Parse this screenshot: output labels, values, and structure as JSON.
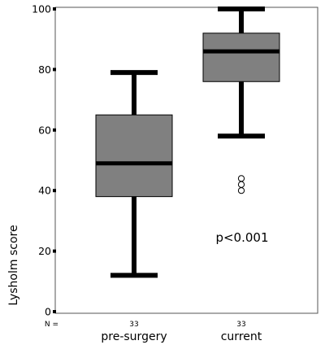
{
  "chart_data": {
    "type": "box",
    "ylabel": "Lysholm score",
    "xlabel": "",
    "ylim": [
      0,
      100
    ],
    "yticks": [
      0,
      20,
      40,
      60,
      80,
      100
    ],
    "categories": [
      "pre-surgery",
      "current"
    ],
    "n_label": "N =",
    "n_values": [
      "33",
      "33"
    ],
    "boxes": [
      {
        "category": "pre-surgery",
        "whisker_low": 12,
        "q1": 38,
        "median": 49,
        "q3": 65,
        "whisker_high": 79,
        "outliers": []
      },
      {
        "category": "current",
        "whisker_low": 58,
        "q1": 76,
        "median": 86,
        "q3": 92,
        "whisker_high": 100,
        "outliers": [
          44,
          42,
          40
        ]
      }
    ],
    "annotation": "p<0.001",
    "box_color": "#808080",
    "grid": false
  }
}
